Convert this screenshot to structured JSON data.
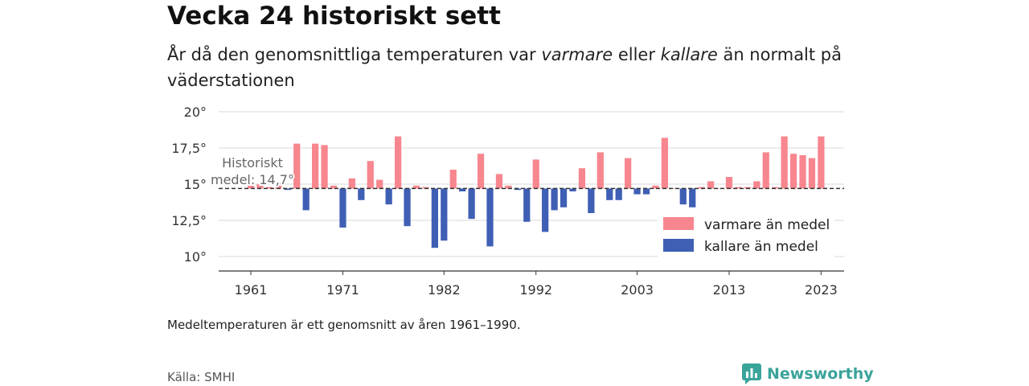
{
  "header": {
    "title": "Vecka 24 historiskt sett",
    "subtitle_parts": [
      "År då den genomsnittliga temperaturen var ",
      "varmare",
      " eller ",
      "kallare",
      " än normalt på väderstationen"
    ]
  },
  "footer": {
    "note": "Medeltemperaturen är ett genomsnitt av åren 1961–1990.",
    "source": "Källa: SMHI",
    "brand": "Newsworthy"
  },
  "colors": {
    "warm": "#f7868f",
    "cold": "#3f5fb5",
    "brand": "#3aa39a"
  },
  "chart_data": {
    "type": "bar",
    "baseline": 14.7,
    "baseline_label": [
      "Historiskt",
      "medel: 14,7°"
    ],
    "ylim": [
      9,
      20.5
    ],
    "yticks": [
      {
        "value": 10,
        "label": "10°"
      },
      {
        "value": 12.5,
        "label": "12,5°"
      },
      {
        "value": 15,
        "label": "15°"
      },
      {
        "value": 17.5,
        "label": "17,5°"
      },
      {
        "value": 20,
        "label": "20°"
      }
    ],
    "xlim": [
      1957.5,
      2025.5
    ],
    "xticks": [
      {
        "value": 1961,
        "label": "1961"
      },
      {
        "value": 1971,
        "label": "1971"
      },
      {
        "value": 1982,
        "label": "1982"
      },
      {
        "value": 1992,
        "label": "1992"
      },
      {
        "value": 2003,
        "label": "2003"
      },
      {
        "value": 2013,
        "label": "2013"
      },
      {
        "value": 2023,
        "label": "2023"
      }
    ],
    "legend": {
      "position": "lower-right",
      "warm": "varmare än medel",
      "cold": "kallare än medel"
    },
    "grid": true,
    "series": [
      {
        "year": 1961,
        "value": 15.1
      },
      {
        "year": 1962,
        "value": 15.0
      },
      {
        "year": 1963,
        "value": 14.8
      },
      {
        "year": 1964,
        "value": 15.1
      },
      {
        "year": 1965,
        "value": 14.6
      },
      {
        "year": 1966,
        "value": 17.8
      },
      {
        "year": 1967,
        "value": 13.2
      },
      {
        "year": 1968,
        "value": 17.8
      },
      {
        "year": 1969,
        "value": 17.7
      },
      {
        "year": 1970,
        "value": 14.9
      },
      {
        "year": 1971,
        "value": 12.0
      },
      {
        "year": 1972,
        "value": 15.4
      },
      {
        "year": 1973,
        "value": 13.9
      },
      {
        "year": 1974,
        "value": 16.6
      },
      {
        "year": 1975,
        "value": 15.3
      },
      {
        "year": 1976,
        "value": 13.6
      },
      {
        "year": 1977,
        "value": 18.3
      },
      {
        "year": 1978,
        "value": 12.1
      },
      {
        "year": 1979,
        "value": 14.9
      },
      {
        "year": 1980,
        "value": 14.8
      },
      {
        "year": 1981,
        "value": 10.6
      },
      {
        "year": 1982,
        "value": 11.1
      },
      {
        "year": 1983,
        "value": 16.0
      },
      {
        "year": 1984,
        "value": 14.5
      },
      {
        "year": 1985,
        "value": 12.6
      },
      {
        "year": 1986,
        "value": 17.1
      },
      {
        "year": 1987,
        "value": 10.7
      },
      {
        "year": 1988,
        "value": 15.7
      },
      {
        "year": 1989,
        "value": 14.9
      },
      {
        "year": 1990,
        "value": 14.6
      },
      {
        "year": 1991,
        "value": 12.4
      },
      {
        "year": 1992,
        "value": 16.7
      },
      {
        "year": 1993,
        "value": 11.7
      },
      {
        "year": 1994,
        "value": 13.2
      },
      {
        "year": 1995,
        "value": 13.4
      },
      {
        "year": 1996,
        "value": 14.5
      },
      {
        "year": 1997,
        "value": 16.1
      },
      {
        "year": 1998,
        "value": 13.0
      },
      {
        "year": 1999,
        "value": 17.2
      },
      {
        "year": 2000,
        "value": 13.9
      },
      {
        "year": 2001,
        "value": 13.9
      },
      {
        "year": 2002,
        "value": 16.8
      },
      {
        "year": 2003,
        "value": 14.3
      },
      {
        "year": 2004,
        "value": 14.3
      },
      {
        "year": 2005,
        "value": 14.9
      },
      {
        "year": 2006,
        "value": 18.2
      },
      {
        "year": 2007,
        "value": 14.7
      },
      {
        "year": 2008,
        "value": 13.6
      },
      {
        "year": 2009,
        "value": 13.4
      },
      {
        "year": 2010,
        "value": 14.8
      },
      {
        "year": 2011,
        "value": 15.2
      },
      {
        "year": 2012,
        "value": 14.7
      },
      {
        "year": 2013,
        "value": 15.5
      },
      {
        "year": 2014,
        "value": 14.8
      },
      {
        "year": 2015,
        "value": 14.8
      },
      {
        "year": 2016,
        "value": 15.2
      },
      {
        "year": 2017,
        "value": 17.2
      },
      {
        "year": 2018,
        "value": 14.8
      },
      {
        "year": 2019,
        "value": 18.3
      },
      {
        "year": 2020,
        "value": 17.1
      },
      {
        "year": 2021,
        "value": 17.0
      },
      {
        "year": 2022,
        "value": 16.8
      },
      {
        "year": 2023,
        "value": 18.3
      }
    ]
  }
}
